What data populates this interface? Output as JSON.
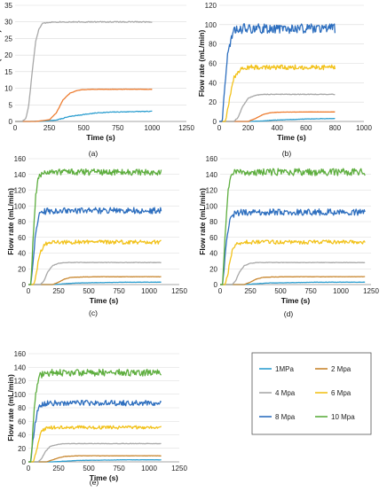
{
  "colors": {
    "1MPa": "#2e9fd0",
    "2 Mpa": "#c8862e",
    "4 Mpa": "#a8a8a8",
    "6 Mpa": "#f2c21b",
    "8 Mpa": "#2e6fbf",
    "10 Mpa": "#5eae3f",
    "a_orange": "#ed7d31",
    "axis": "#888888",
    "grid": "#d9d9d9"
  },
  "legend": {
    "entries": [
      {
        "label": "1MPa",
        "color": "#2e9fd0"
      },
      {
        "label": "2 Mpa",
        "color": "#c8862e"
      },
      {
        "label": "4 Mpa",
        "color": "#a8a8a8"
      },
      {
        "label": "6 Mpa",
        "color": "#f2c21b"
      },
      {
        "label": "8 Mpa",
        "color": "#2e6fbf"
      },
      {
        "label": "10 Mpa",
        "color": "#5eae3f"
      }
    ]
  },
  "chart_data": [
    {
      "type": "line",
      "panel_label": "(a)",
      "xlabel": "Time (s)",
      "ylabel": "Flow rate (mL/min)",
      "xlim": [
        0,
        1250
      ],
      "ylim": [
        0,
        35
      ],
      "xticks": [
        0,
        250,
        500,
        750,
        1000,
        1250
      ],
      "yticks": [
        0,
        5,
        10,
        15,
        20,
        25,
        30,
        35
      ],
      "grid": true,
      "series": [
        {
          "color": "#2e9fd0",
          "noise": 0.1,
          "x": [
            0,
            100,
            200,
            300,
            400,
            500,
            600,
            700,
            800,
            900,
            1000
          ],
          "y": [
            0,
            0,
            0.1,
            0.4,
            1.5,
            2.1,
            2.6,
            2.8,
            2.9,
            3.0,
            3.0
          ]
        },
        {
          "color": "#ed7d31",
          "noise": 0.05,
          "x": [
            0,
            150,
            250,
            300,
            350,
            400,
            450,
            500,
            600,
            700,
            800,
            900,
            1000
          ],
          "y": [
            0,
            0,
            0.5,
            2.5,
            6.5,
            8.5,
            9.3,
            9.6,
            9.7,
            9.7,
            9.7,
            9.7,
            9.7
          ]
        },
        {
          "color": "#a8a8a8",
          "noise": 0.15,
          "x": [
            0,
            50,
            80,
            100,
            125,
            150,
            175,
            200,
            250,
            300,
            400,
            500,
            600,
            700,
            800,
            900,
            1000
          ],
          "y": [
            0,
            0,
            1,
            5,
            15,
            24,
            28,
            29.5,
            29.9,
            30,
            30,
            30,
            30,
            30,
            30,
            30,
            30
          ]
        }
      ]
    },
    {
      "type": "line",
      "panel_label": "(b)",
      "xlabel": "Time (s)",
      "ylabel": "Flow rate (mL/min)",
      "xlim": [
        0,
        1000
      ],
      "ylim": [
        0,
        120
      ],
      "xticks": [
        0,
        200,
        400,
        600,
        800,
        1000
      ],
      "yticks": [
        0,
        20,
        40,
        60,
        80,
        100,
        120
      ],
      "grid": true,
      "series": [
        {
          "color": "#2e9fd0",
          "noise": 0.2,
          "x": [
            0,
            200,
            300,
            400,
            500,
            600,
            700,
            800
          ],
          "y": [
            0,
            0,
            0.5,
            1.5,
            2,
            2.5,
            2.8,
            3
          ]
        },
        {
          "color": "#ed7d31",
          "noise": 0.1,
          "x": [
            0,
            200,
            250,
            300,
            350,
            400,
            500,
            600,
            700,
            800
          ],
          "y": [
            0,
            0,
            3,
            7,
            9,
            9.5,
            9.7,
            9.8,
            9.8,
            9.8
          ]
        },
        {
          "color": "#a8a8a8",
          "noise": 0.3,
          "x": [
            0,
            100,
            130,
            160,
            200,
            250,
            300,
            400,
            500,
            600,
            700,
            800
          ],
          "y": [
            0,
            0,
            4,
            15,
            24,
            27,
            28,
            28,
            28,
            28,
            28,
            28
          ]
        },
        {
          "color": "#f2c21b",
          "noise": 2.5,
          "x": [
            0,
            40,
            60,
            80,
            100,
            130,
            160,
            200,
            300,
            400,
            500,
            600,
            700,
            800
          ],
          "y": [
            0,
            0,
            12,
            30,
            44,
            52,
            55,
            56,
            56,
            56,
            56,
            56,
            56,
            56
          ]
        },
        {
          "color": "#2e6fbf",
          "noise": 5,
          "x": [
            0,
            20,
            40,
            60,
            80,
            100,
            130,
            160,
            200,
            300,
            400,
            500,
            600,
            700,
            800
          ],
          "y": [
            0,
            0,
            40,
            70,
            86,
            92,
            95,
            96,
            96,
            96,
            96,
            96,
            96,
            96,
            96
          ]
        }
      ]
    },
    {
      "type": "line",
      "panel_label": "(c)",
      "xlabel": "Time (s)",
      "ylabel": "Flow rate (mL/min)",
      "xlim": [
        0,
        1250
      ],
      "ylim": [
        0,
        160
      ],
      "xticks": [
        0,
        250,
        500,
        750,
        1000,
        1250
      ],
      "yticks": [
        0,
        20,
        40,
        60,
        80,
        100,
        120,
        140,
        160
      ],
      "grid": true,
      "series": [
        {
          "color": "#2e9fd0",
          "noise": 0.2,
          "x": [
            0,
            200,
            300,
            400,
            600,
            800,
            1100
          ],
          "y": [
            0,
            0,
            1,
            2,
            2.5,
            3,
            3
          ]
        },
        {
          "color": "#c8862e",
          "noise": 0.2,
          "x": [
            0,
            200,
            250,
            300,
            350,
            400,
            600,
            800,
            1100
          ],
          "y": [
            0,
            0,
            3,
            7,
            9,
            9.5,
            10,
            10,
            10
          ]
        },
        {
          "color": "#a8a8a8",
          "noise": 0.3,
          "x": [
            0,
            100,
            130,
            160,
            200,
            250,
            300,
            500,
            800,
            1100
          ],
          "y": [
            0,
            0,
            5,
            16,
            24,
            27,
            28,
            28,
            28,
            28
          ]
        },
        {
          "color": "#f2c21b",
          "noise": 2.5,
          "x": [
            0,
            40,
            60,
            80,
            100,
            130,
            160,
            200,
            400,
            800,
            1100
          ],
          "y": [
            0,
            0,
            10,
            28,
            42,
            50,
            53,
            54,
            54,
            54,
            54
          ]
        },
        {
          "color": "#2e6fbf",
          "noise": 4,
          "x": [
            0,
            20,
            40,
            60,
            80,
            100,
            130,
            200,
            400,
            800,
            1100
          ],
          "y": [
            0,
            0,
            35,
            65,
            84,
            90,
            93,
            94,
            94,
            94,
            94
          ]
        },
        {
          "color": "#5eae3f",
          "noise": 4,
          "x": [
            0,
            20,
            40,
            60,
            80,
            100,
            130,
            200,
            400,
            800,
            1100
          ],
          "y": [
            0,
            0,
            60,
            110,
            133,
            140,
            142,
            143,
            143,
            143,
            143
          ]
        }
      ]
    },
    {
      "type": "line",
      "panel_label": "(d)",
      "xlabel": "Time (s)",
      "ylabel": "Flow rate (mL/min)",
      "xlim": [
        0,
        1250
      ],
      "ylim": [
        0,
        160
      ],
      "xticks": [
        0,
        250,
        500,
        750,
        1000,
        1250
      ],
      "yticks": [
        0,
        20,
        40,
        60,
        80,
        100,
        120,
        140,
        160
      ],
      "grid": true,
      "series": [
        {
          "color": "#2e9fd0",
          "noise": 0.2,
          "x": [
            0,
            200,
            300,
            400,
            600,
            800,
            1200
          ],
          "y": [
            0,
            0,
            1,
            2,
            2.5,
            3,
            3
          ]
        },
        {
          "color": "#c8862e",
          "noise": 0.2,
          "x": [
            0,
            200,
            250,
            300,
            350,
            400,
            600,
            800,
            1200
          ],
          "y": [
            0,
            0,
            3,
            7,
            9,
            9.5,
            10,
            10,
            10
          ]
        },
        {
          "color": "#a8a8a8",
          "noise": 0.3,
          "x": [
            0,
            100,
            130,
            160,
            200,
            250,
            300,
            500,
            800,
            1200
          ],
          "y": [
            0,
            0,
            5,
            16,
            24,
            27,
            28,
            28,
            28,
            28
          ]
        },
        {
          "color": "#f2c21b",
          "noise": 2.5,
          "x": [
            0,
            40,
            60,
            80,
            100,
            130,
            160,
            200,
            400,
            800,
            1200
          ],
          "y": [
            0,
            0,
            10,
            28,
            42,
            50,
            53,
            54,
            54,
            54,
            54
          ]
        },
        {
          "color": "#2e6fbf",
          "noise": 4,
          "x": [
            0,
            20,
            40,
            60,
            80,
            100,
            130,
            200,
            400,
            800,
            1200
          ],
          "y": [
            0,
            0,
            35,
            65,
            82,
            88,
            91,
            92,
            92,
            92,
            92
          ]
        },
        {
          "color": "#5eae3f",
          "noise": 4.5,
          "x": [
            0,
            20,
            40,
            60,
            80,
            100,
            130,
            200,
            400,
            800,
            1200
          ],
          "y": [
            0,
            0,
            60,
            110,
            135,
            142,
            143,
            143,
            143,
            143,
            143
          ]
        }
      ]
    },
    {
      "type": "line",
      "panel_label": "(e)",
      "xlabel": "Time (s)",
      "ylabel": "Flow rate (mL/min)",
      "xlim": [
        0,
        1250
      ],
      "ylim": [
        0,
        160
      ],
      "xticks": [
        0,
        250,
        500,
        750,
        1000,
        1250
      ],
      "yticks": [
        0,
        20,
        40,
        60,
        80,
        100,
        120,
        140,
        160
      ],
      "grid": true,
      "series": [
        {
          "color": "#2e9fd0",
          "noise": 0.2,
          "x": [
            0,
            200,
            300,
            400,
            600,
            800,
            1100
          ],
          "y": [
            0,
            0,
            1,
            2,
            2.5,
            3,
            3
          ]
        },
        {
          "color": "#c8862e",
          "noise": 0.2,
          "x": [
            0,
            150,
            200,
            250,
            300,
            400,
            600,
            800,
            1100
          ],
          "y": [
            0,
            0,
            3,
            6,
            8,
            9,
            9,
            9,
            9
          ]
        },
        {
          "color": "#a8a8a8",
          "noise": 0.3,
          "x": [
            0,
            80,
            110,
            140,
            180,
            250,
            300,
            500,
            800,
            1100
          ],
          "y": [
            0,
            0,
            5,
            15,
            23,
            26,
            27,
            27,
            27,
            27
          ]
        },
        {
          "color": "#f2c21b",
          "noise": 2.5,
          "x": [
            0,
            40,
            60,
            80,
            100,
            130,
            160,
            200,
            400,
            800,
            1100
          ],
          "y": [
            0,
            0,
            10,
            28,
            42,
            48,
            50,
            51,
            51,
            51,
            51
          ]
        },
        {
          "color": "#2e6fbf",
          "noise": 4,
          "x": [
            0,
            20,
            40,
            60,
            80,
            100,
            130,
            200,
            400,
            800,
            1100
          ],
          "y": [
            0,
            0,
            35,
            62,
            78,
            84,
            86,
            87,
            87,
            87,
            87
          ]
        },
        {
          "color": "#5eae3f",
          "noise": 5,
          "x": [
            0,
            20,
            40,
            60,
            80,
            100,
            130,
            200,
            400,
            800,
            1100
          ],
          "y": [
            0,
            0,
            55,
            100,
            122,
            128,
            131,
            132,
            132,
            132,
            132
          ]
        }
      ]
    }
  ]
}
